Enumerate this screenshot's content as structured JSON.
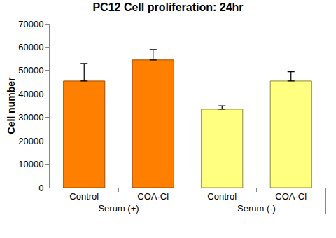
{
  "chart_data": {
    "type": "bar",
    "title": "PC12 Cell proliferation: 24hr",
    "y_label": "Cell number",
    "categories": [
      "Control",
      "COA-Cl",
      "Control",
      "COA-Cl"
    ],
    "groups": [
      "Serum (+)",
      "Serum (+)",
      "Serum (-)",
      "Serum (-)"
    ],
    "values": [
      45500,
      54500,
      33500,
      45500
    ],
    "errors": [
      7500,
      4500,
      1500,
      4000
    ],
    "colors": [
      "#ff7f00",
      "#ff7f00",
      "#ffff80",
      "#ffff80"
    ],
    "ylim": [
      0,
      70000
    ],
    "yticks": [
      0,
      10000,
      20000,
      30000,
      40000,
      50000,
      60000,
      70000
    ],
    "grid": false
  }
}
